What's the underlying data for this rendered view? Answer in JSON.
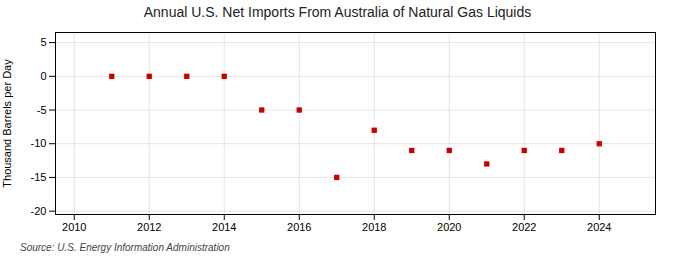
{
  "chart_data": {
    "type": "scatter",
    "title": "Annual U.S. Net Imports From Australia of Natural Gas Liquids",
    "ylabel": "Thousand Barrels per Day",
    "source": "Source: U.S. Energy Information Administration",
    "x": [
      2011,
      2012,
      2013,
      2014,
      2015,
      2016,
      2017,
      2018,
      2019,
      2020,
      2021,
      2022,
      2023,
      2024
    ],
    "values": [
      0,
      0,
      0,
      0,
      -5,
      -5,
      -15,
      -8,
      -11,
      -11,
      -13,
      -11,
      -11,
      -10
    ],
    "color": "#cc0000",
    "marker": "square",
    "xlim": [
      2009.5,
      2025.5
    ],
    "ylim": [
      -20.5,
      6.5
    ],
    "xticks": [
      2010,
      2012,
      2014,
      2016,
      2018,
      2020,
      2022,
      2024
    ],
    "yticks": [
      5,
      0,
      -5,
      -10,
      -15,
      -20
    ],
    "grid": true
  }
}
